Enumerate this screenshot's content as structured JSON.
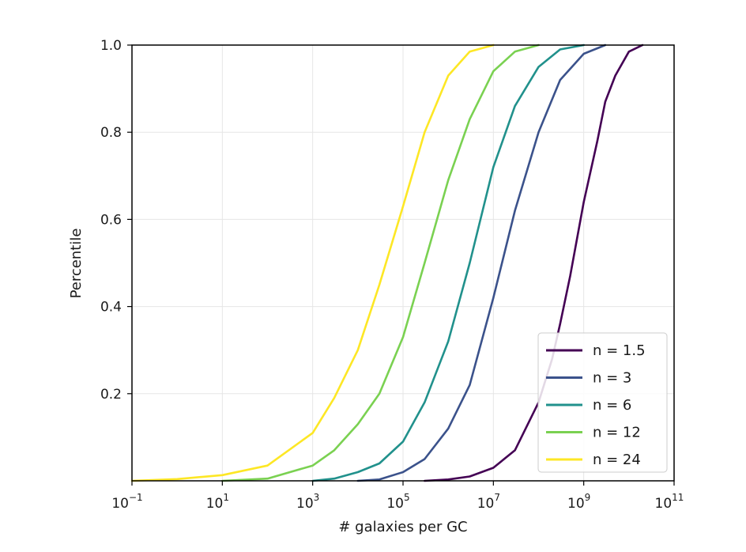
{
  "chart_data": {
    "type": "line",
    "title": "",
    "xlabel": "# galaxies per GC",
    "ylabel": "Percentile",
    "xscale": "log",
    "xlim": [
      0.1,
      100000000000
    ],
    "ylim": [
      0,
      1.0
    ],
    "grid": true,
    "legend_placement": "bottom-right",
    "x_ticks": [
      {
        "base": "10",
        "exp": "−1"
      },
      {
        "base": "10",
        "exp": "1"
      },
      {
        "base": "10",
        "exp": "3"
      },
      {
        "base": "10",
        "exp": "5"
      },
      {
        "base": "10",
        "exp": "7"
      },
      {
        "base": "10",
        "exp": "9"
      },
      {
        "base": "10",
        "exp": "11"
      }
    ],
    "y_ticks": [
      "0.2",
      "0.4",
      "0.6",
      "0.8",
      "1.0"
    ],
    "series": [
      {
        "name": "n = 1.5",
        "color": "#440154",
        "points": [
          [
            300000.0,
            0.0
          ],
          [
            1000000.0,
            0.003
          ],
          [
            3000000.0,
            0.01
          ],
          [
            10000000.0,
            0.03
          ],
          [
            30000000.0,
            0.07
          ],
          [
            100000000.0,
            0.18
          ],
          [
            200000000.0,
            0.28
          ],
          [
            300000000.0,
            0.36
          ],
          [
            500000000.0,
            0.47
          ],
          [
            1000000000.0,
            0.64
          ],
          [
            2000000000.0,
            0.78
          ],
          [
            3000000000.0,
            0.87
          ],
          [
            5000000000.0,
            0.93
          ],
          [
            10000000000.0,
            0.985
          ],
          [
            20000000000.0,
            1.0
          ]
        ]
      },
      {
        "name": "n = 3",
        "color": "#3b528b",
        "points": [
          [
            10000.0,
            0.0
          ],
          [
            30000.0,
            0.003
          ],
          [
            100000.0,
            0.02
          ],
          [
            300000.0,
            0.05
          ],
          [
            1000000.0,
            0.12
          ],
          [
            3000000.0,
            0.22
          ],
          [
            10000000.0,
            0.42
          ],
          [
            30000000.0,
            0.62
          ],
          [
            100000000.0,
            0.8
          ],
          [
            300000000.0,
            0.92
          ],
          [
            1000000000.0,
            0.98
          ],
          [
            3000000000.0,
            1.0
          ]
        ]
      },
      {
        "name": "n = 6",
        "color": "#21918c",
        "points": [
          [
            1000.0,
            0.0
          ],
          [
            3000.0,
            0.005
          ],
          [
            10000.0,
            0.02
          ],
          [
            30000.0,
            0.04
          ],
          [
            100000.0,
            0.09
          ],
          [
            300000.0,
            0.18
          ],
          [
            1000000.0,
            0.32
          ],
          [
            3000000.0,
            0.5
          ],
          [
            10000000.0,
            0.72
          ],
          [
            30000000.0,
            0.86
          ],
          [
            100000000.0,
            0.95
          ],
          [
            300000000.0,
            0.99
          ],
          [
            1000000000.0,
            1.0
          ]
        ]
      },
      {
        "name": "n = 12",
        "color": "#7ad151",
        "points": [
          [
            10.0,
            0.0
          ],
          [
            100.0,
            0.005
          ],
          [
            1000.0,
            0.035
          ],
          [
            3000.0,
            0.07
          ],
          [
            10000.0,
            0.13
          ],
          [
            30000.0,
            0.2
          ],
          [
            100000.0,
            0.33
          ],
          [
            300000.0,
            0.5
          ],
          [
            1000000.0,
            0.69
          ],
          [
            3000000.0,
            0.83
          ],
          [
            10000000.0,
            0.94
          ],
          [
            30000000.0,
            0.985
          ],
          [
            100000000.0,
            1.0
          ]
        ]
      },
      {
        "name": "n = 24",
        "color": "#fde725",
        "points": [
          [
            0.1,
            0.0
          ],
          [
            1,
            0.004
          ],
          [
            10,
            0.013
          ],
          [
            100,
            0.035
          ],
          [
            1000.0,
            0.11
          ],
          [
            3000.0,
            0.19
          ],
          [
            10000.0,
            0.3
          ],
          [
            30000.0,
            0.45
          ],
          [
            100000.0,
            0.63
          ],
          [
            300000.0,
            0.8
          ],
          [
            1000000.0,
            0.93
          ],
          [
            3000000.0,
            0.985
          ],
          [
            10000000.0,
            1.0
          ]
        ]
      }
    ]
  }
}
